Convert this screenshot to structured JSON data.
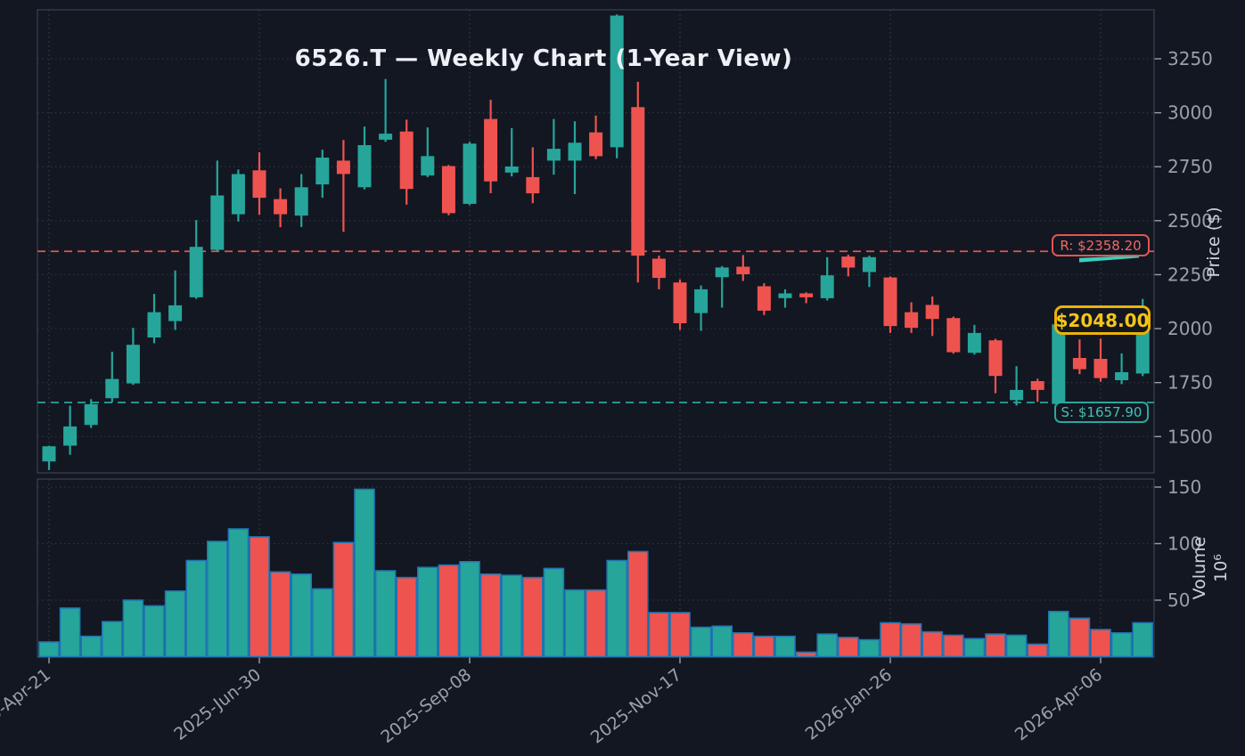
{
  "window": {
    "title": "6526.T — Weekly Chart (1-Year View)"
  },
  "colors": {
    "background": "#131722",
    "up": "#26a69a",
    "down": "#ef5350",
    "volume_edge": "#1f77b4",
    "grid": "#8f99ad",
    "spine": "#3a4150",
    "tick_text": "#9aa0aa",
    "axis_title_text": "#cdd2da",
    "resistance": "#e25550",
    "support": "#2aa79b",
    "last_price_accent": "#eab308",
    "swoosh": "#35d0bf"
  },
  "price_axis": {
    "title": "Price ($)",
    "ticks": [
      3250,
      3000,
      2750,
      2500,
      2250,
      2000,
      1750,
      1500
    ]
  },
  "volume_axis": {
    "title": "Volume",
    "unit": "10⁶",
    "ticks": [
      150,
      100,
      50
    ]
  },
  "x_axis": {
    "tick_labels": [
      "2025-Apr-21",
      "2025-Jun-30",
      "2025-Sep-08",
      "2025-Nov-17",
      "2026-Jan-26",
      "2026-Apr-06"
    ],
    "tick_indices": [
      0,
      10,
      20,
      30,
      40,
      50
    ]
  },
  "annotations": {
    "resistance": {
      "label": "R: $2358.20",
      "value": 2358.2
    },
    "support": {
      "label": "S: $1657.90",
      "value": 1657.9
    },
    "last_price": {
      "label": "$2048.00",
      "value": 2048.0
    }
  },
  "chart_data": {
    "type": "candlestick",
    "title": "6526.T — Weekly Chart (1-Year View)",
    "panels": [
      "price",
      "volume"
    ],
    "price_ylim": [
      1330,
      3470
    ],
    "volume_ylim": [
      0,
      160
    ],
    "volume_unit": "1e6",
    "legend": "none",
    "grid": "dotted",
    "candles_format": [
      "open",
      "high",
      "low",
      "close",
      "volume_millions"
    ],
    "candles": [
      [
        1385,
        1458,
        1345,
        1455,
        13
      ],
      [
        1458,
        1643,
        1416,
        1547,
        43
      ],
      [
        1554,
        1673,
        1540,
        1650,
        18
      ],
      [
        1678,
        1893,
        1659,
        1767,
        31
      ],
      [
        1746,
        2003,
        1739,
        1925,
        50
      ],
      [
        1959,
        2161,
        1932,
        2076,
        45
      ],
      [
        2035,
        2269,
        1994,
        2108,
        58
      ],
      [
        2145,
        2503,
        2138,
        2379,
        85
      ],
      [
        2365,
        2778,
        2358,
        2617,
        102
      ],
      [
        2530,
        2737,
        2496,
        2716,
        113
      ],
      [
        2733,
        2817,
        2528,
        2606,
        106
      ],
      [
        2600,
        2650,
        2470,
        2530,
        75
      ],
      [
        2524,
        2716,
        2471,
        2655,
        73
      ],
      [
        2668,
        2829,
        2606,
        2792,
        60
      ],
      [
        2778,
        2874,
        2448,
        2716,
        101
      ],
      [
        2655,
        2936,
        2645,
        2850,
        148
      ],
      [
        2875,
        3156,
        2865,
        2903,
        76
      ],
      [
        2913,
        2968,
        2574,
        2647,
        70
      ],
      [
        2709,
        2932,
        2702,
        2799,
        79
      ],
      [
        2753,
        2758,
        2525,
        2535,
        81
      ],
      [
        2578,
        2865,
        2572,
        2857,
        84
      ],
      [
        2971,
        3060,
        2627,
        2682,
        73
      ],
      [
        2723,
        2929,
        2705,
        2751,
        72
      ],
      [
        2702,
        2840,
        2581,
        2627,
        70
      ],
      [
        2778,
        2971,
        2713,
        2833,
        78
      ],
      [
        2778,
        2960,
        2623,
        2861,
        59
      ],
      [
        2909,
        2987,
        2785,
        2799,
        59
      ],
      [
        2840,
        3455,
        2789,
        3450,
        85
      ],
      [
        3026,
        3143,
        2214,
        2338,
        93
      ],
      [
        2324,
        2338,
        2182,
        2235,
        39
      ],
      [
        2214,
        2228,
        1994,
        2025,
        39
      ],
      [
        2072,
        2200,
        1990,
        2182,
        26
      ],
      [
        2238,
        2290,
        2097,
        2283,
        27
      ],
      [
        2287,
        2341,
        2221,
        2252,
        21
      ],
      [
        2196,
        2210,
        2063,
        2083,
        18
      ],
      [
        2141,
        2182,
        2097,
        2163,
        18
      ],
      [
        2163,
        2168,
        2118,
        2145,
        4
      ],
      [
        2141,
        2331,
        2130,
        2247,
        20
      ],
      [
        2334,
        2342,
        2242,
        2283,
        17
      ],
      [
        2262,
        2338,
        2193,
        2331,
        15
      ],
      [
        2237,
        2242,
        1980,
        2012,
        30
      ],
      [
        2076,
        2122,
        1980,
        2004,
        29
      ],
      [
        2110,
        2149,
        1966,
        2045,
        22
      ],
      [
        2049,
        2056,
        1884,
        1891,
        19
      ],
      [
        1888,
        2017,
        1880,
        1980,
        16
      ],
      [
        1946,
        1953,
        1701,
        1781,
        20
      ],
      [
        1669,
        1826,
        1644,
        1716,
        19
      ],
      [
        1757,
        1768,
        1661,
        1716,
        11
      ],
      [
        1651,
        2040,
        1645,
        2020,
        40
      ],
      [
        1864,
        1950,
        1789,
        1812,
        34
      ],
      [
        1860,
        1954,
        1754,
        1771,
        24
      ],
      [
        1761,
        1885,
        1743,
        1798,
        21
      ],
      [
        1792,
        2137,
        1780,
        2048,
        30
      ]
    ]
  }
}
